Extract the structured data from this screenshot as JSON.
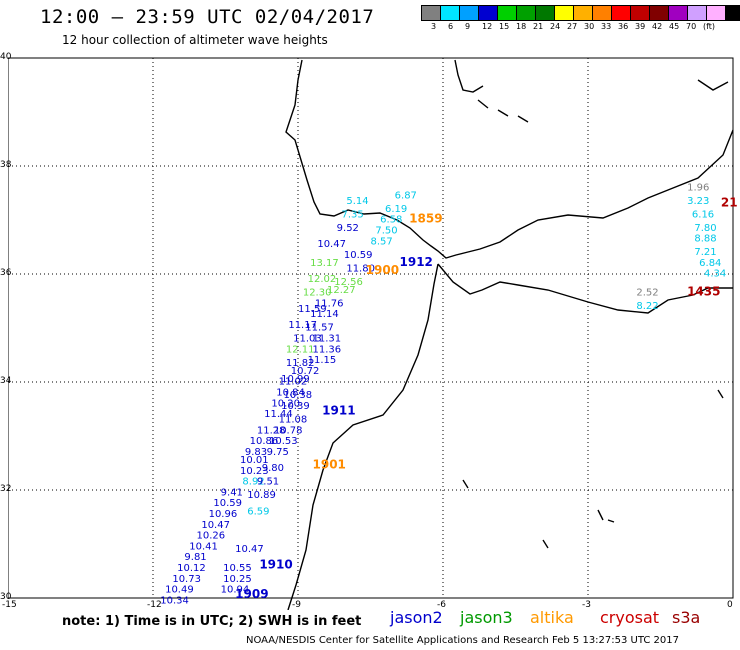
{
  "header": {
    "title": "12:00 – 23:59 UTC 02/04/2017",
    "subtitle": "12 hour collection of altimeter wave heights"
  },
  "scale": {
    "colors": [
      "#808080",
      "#00e5ff",
      "#00a0ff",
      "#0000d0",
      "#00d000",
      "#00a000",
      "#007800",
      "#ffff00",
      "#ffb000",
      "#ff8000",
      "#ff0000",
      "#c00000",
      "#800000",
      "#a000c0",
      "#d0a0ff",
      "#ffb0ff",
      "#000000"
    ],
    "labels": [
      "3",
      "6",
      "9",
      "12",
      "15",
      "18",
      "21",
      "24",
      "27",
      "30",
      "33",
      "36",
      "39",
      "42",
      "45",
      "70",
      "(ft)"
    ]
  },
  "axes": {
    "lat_labels": [
      "40",
      "38",
      "36",
      "34",
      "32",
      "30"
    ],
    "lon_labels": [
      "-15",
      "-12",
      "-9",
      "-6",
      "-3",
      "0"
    ]
  },
  "pass_labels": [
    {
      "text": "1859",
      "color": "#ff8c00",
      "lon": -6.7,
      "lat": 36.95
    },
    {
      "text": "1900",
      "color": "#ff8c00",
      "lon": -7.6,
      "lat": 36.0
    },
    {
      "text": "1901",
      "color": "#ff8c00",
      "lon": -8.7,
      "lat": 32.4
    },
    {
      "text": "1912",
      "color": "#0000cc",
      "lon": -6.9,
      "lat": 36.15
    },
    {
      "text": "1911",
      "color": "#0000cc",
      "lon": -8.5,
      "lat": 33.4
    },
    {
      "text": "1910",
      "color": "#0000cc",
      "lon": -9.8,
      "lat": 30.55
    },
    {
      "text": "1909",
      "color": "#0000cc",
      "lon": -10.3,
      "lat": 30.0
    },
    {
      "text": "1435",
      "color": "#b00000",
      "lon": -0.95,
      "lat": 35.6
    },
    {
      "text": "21",
      "color": "#b00000",
      "lon": -0.25,
      "lat": 37.25
    }
  ],
  "measurements": [
    {
      "text": "5.14",
      "color": "#00c8e8",
      "lon": -8.0,
      "lat": 37.3
    },
    {
      "text": "6.87",
      "color": "#00c8e8",
      "lon": -7.0,
      "lat": 37.4
    },
    {
      "text": "6.19",
      "color": "#00c8e8",
      "lon": -7.2,
      "lat": 37.15
    },
    {
      "text": "7.35",
      "color": "#00c8e8",
      "lon": -8.1,
      "lat": 37.05
    },
    {
      "text": "6.58",
      "color": "#00c8e8",
      "lon": -7.3,
      "lat": 36.95
    },
    {
      "text": "9.52",
      "color": "#0000cc",
      "lon": -8.2,
      "lat": 36.8
    },
    {
      "text": "7.50",
      "color": "#00c8e8",
      "lon": -7.4,
      "lat": 36.75
    },
    {
      "text": "8.57",
      "color": "#00c8e8",
      "lon": -7.5,
      "lat": 36.55
    },
    {
      "text": "10.47",
      "color": "#0000cc",
      "lon": -8.6,
      "lat": 36.5
    },
    {
      "text": "10.59",
      "color": "#0000cc",
      "lon": -8.05,
      "lat": 36.3
    },
    {
      "text": "13.17",
      "color": "#66dd44",
      "lon": -8.75,
      "lat": 36.15
    },
    {
      "text": "11.80",
      "color": "#0000cc",
      "lon": -8.0,
      "lat": 36.05
    },
    {
      "text": "12.02",
      "color": "#66dd44",
      "lon": -8.8,
      "lat": 35.85
    },
    {
      "text": "12.56",
      "color": "#66dd44",
      "lon": -8.25,
      "lat": 35.8
    },
    {
      "text": "12.30",
      "color": "#66dd44",
      "lon": -8.9,
      "lat": 35.6
    },
    {
      "text": "12.27",
      "color": "#66dd44",
      "lon": -8.4,
      "lat": 35.65
    },
    {
      "text": "11.59",
      "color": "#0000cc",
      "lon": -9.0,
      "lat": 35.3
    },
    {
      "text": "11.76",
      "color": "#0000cc",
      "lon": -8.65,
      "lat": 35.4
    },
    {
      "text": "11.14",
      "color": "#0000cc",
      "lon": -8.75,
      "lat": 35.2
    },
    {
      "text": "11.17",
      "color": "#0000cc",
      "lon": -9.2,
      "lat": 35.0
    },
    {
      "text": "11.57",
      "color": "#0000cc",
      "lon": -8.85,
      "lat": 34.95
    },
    {
      "text": "11.03",
      "color": "#0000cc",
      "lon": -9.1,
      "lat": 34.75
    },
    {
      "text": "11.31",
      "color": "#0000cc",
      "lon": -8.7,
      "lat": 34.75
    },
    {
      "text": "11.36",
      "color": "#0000cc",
      "lon": -8.7,
      "lat": 34.55
    },
    {
      "text": "12.11",
      "color": "#66dd44",
      "lon": -9.25,
      "lat": 34.55
    },
    {
      "text": "11.15",
      "color": "#0000cc",
      "lon": -8.8,
      "lat": 34.35
    },
    {
      "text": "11.82",
      "color": "#0000cc",
      "lon": -9.25,
      "lat": 34.3
    },
    {
      "text": "10.72",
      "color": "#0000cc",
      "lon": -9.15,
      "lat": 34.15
    },
    {
      "text": "11.02",
      "color": "#0000cc",
      "lon": -9.4,
      "lat": 33.95
    },
    {
      "text": "10.99",
      "color": "#0000cc",
      "lon": -9.35,
      "lat": 34.0
    },
    {
      "text": "10.84",
      "color": "#0000cc",
      "lon": -9.45,
      "lat": 33.75
    },
    {
      "text": "10.38",
      "color": "#0000cc",
      "lon": -9.3,
      "lat": 33.7
    },
    {
      "text": "10.20",
      "color": "#0000cc",
      "lon": -9.55,
      "lat": 33.55
    },
    {
      "text": "10.39",
      "color": "#0000cc",
      "lon": -9.35,
      "lat": 33.5
    },
    {
      "text": "11.44",
      "color": "#0000cc",
      "lon": -9.7,
      "lat": 33.35
    },
    {
      "text": "11.08",
      "color": "#0000cc",
      "lon": -9.4,
      "lat": 33.25
    },
    {
      "text": "11.28",
      "color": "#0000cc",
      "lon": -9.85,
      "lat": 33.05
    },
    {
      "text": "10.78",
      "color": "#0000cc",
      "lon": -9.5,
      "lat": 33.05
    },
    {
      "text": "10.86",
      "color": "#0000cc",
      "lon": -10.0,
      "lat": 32.85
    },
    {
      "text": "10.53",
      "color": "#0000cc",
      "lon": -9.6,
      "lat": 32.85
    },
    {
      "text": "9.83",
      "color": "#0000cc",
      "lon": -10.1,
      "lat": 32.65
    },
    {
      "text": "9.75",
      "color": "#0000cc",
      "lon": -9.65,
      "lat": 32.65
    },
    {
      "text": "10.01",
      "color": "#0000cc",
      "lon": -10.2,
      "lat": 32.5
    },
    {
      "text": "10.23",
      "color": "#0000cc",
      "lon": -10.2,
      "lat": 32.3
    },
    {
      "text": "9.80",
      "color": "#0000cc",
      "lon": -9.75,
      "lat": 32.35
    },
    {
      "text": "8.92",
      "color": "#00c8e8",
      "lon": -10.15,
      "lat": 32.1
    },
    {
      "text": "9.51",
      "color": "#0000cc",
      "lon": -9.85,
      "lat": 32.1
    },
    {
      "text": "9.41",
      "color": "#0000cc",
      "lon": -10.6,
      "lat": 31.9
    },
    {
      "text": "10.89",
      "color": "#0000cc",
      "lon": -10.05,
      "lat": 31.85
    },
    {
      "text": "10.59",
      "color": "#0000cc",
      "lon": -10.75,
      "lat": 31.7
    },
    {
      "text": "6.59",
      "color": "#00c8e8",
      "lon": -10.05,
      "lat": 31.55
    },
    {
      "text": "10.96",
      "color": "#0000cc",
      "lon": -10.85,
      "lat": 31.5
    },
    {
      "text": "10.47",
      "color": "#0000cc",
      "lon": -11.0,
      "lat": 31.3
    },
    {
      "text": "10.26",
      "color": "#0000cc",
      "lon": -11.1,
      "lat": 31.1
    },
    {
      "text": "10.41",
      "color": "#0000cc",
      "lon": -11.25,
      "lat": 30.9
    },
    {
      "text": "10.47",
      "color": "#0000cc",
      "lon": -10.3,
      "lat": 30.85
    },
    {
      "text": "9.81",
      "color": "#0000cc",
      "lon": -11.35,
      "lat": 30.7
    },
    {
      "text": "10.12",
      "color": "#0000cc",
      "lon": -11.5,
      "lat": 30.5
    },
    {
      "text": "10.55",
      "color": "#0000cc",
      "lon": -10.55,
      "lat": 30.5
    },
    {
      "text": "10.73",
      "color": "#0000cc",
      "lon": -11.6,
      "lat": 30.3
    },
    {
      "text": "10.25",
      "color": "#0000cc",
      "lon": -10.55,
      "lat": 30.3
    },
    {
      "text": "10.49",
      "color": "#0000cc",
      "lon": -11.75,
      "lat": 30.1
    },
    {
      "text": "10.94",
      "color": "#0000cc",
      "lon": -10.6,
      "lat": 30.1
    },
    {
      "text": "10.34",
      "color": "#0000cc",
      "lon": -11.85,
      "lat": 29.9
    },
    {
      "text": "1.96",
      "color": "#808080",
      "lon": -0.95,
      "lat": 37.55
    },
    {
      "text": "3.23",
      "color": "#00c8e8",
      "lon": -0.95,
      "lat": 37.3
    },
    {
      "text": "6.16",
      "color": "#00c8e8",
      "lon": -0.85,
      "lat": 37.05
    },
    {
      "text": "7.80",
      "color": "#00c8e8",
      "lon": -0.8,
      "lat": 36.8
    },
    {
      "text": "8.88",
      "color": "#00c8e8",
      "lon": -0.8,
      "lat": 36.6
    },
    {
      "text": "7.21",
      "color": "#00c8e8",
      "lon": -0.8,
      "lat": 36.35
    },
    {
      "text": "6.84",
      "color": "#00c8e8",
      "lon": -0.7,
      "lat": 36.15
    },
    {
      "text": "4.34",
      "color": "#00c8e8",
      "lon": -0.6,
      "lat": 35.95
    },
    {
      "text": "2.52",
      "color": "#808080",
      "lon": -2.0,
      "lat": 35.6
    },
    {
      "text": "8.22",
      "color": "#00c8e8",
      "lon": -2.0,
      "lat": 35.35
    }
  ],
  "notes": {
    "note": "note:  1) Time is in UTC;  2) SWH is in feet"
  },
  "legend": [
    {
      "text": "jason2",
      "color": "#0000cc"
    },
    {
      "text": "jason3",
      "color": "#009900"
    },
    {
      "text": "altika",
      "color": "#ff9900"
    },
    {
      "text": "cryosat",
      "color": "#cc0000"
    },
    {
      "text": "s3a",
      "color": "#990000"
    }
  ],
  "footer": "NOAA/NESDIS Center for Satellite Applications and Research    Feb  5 13:27:53 UTC 2017"
}
